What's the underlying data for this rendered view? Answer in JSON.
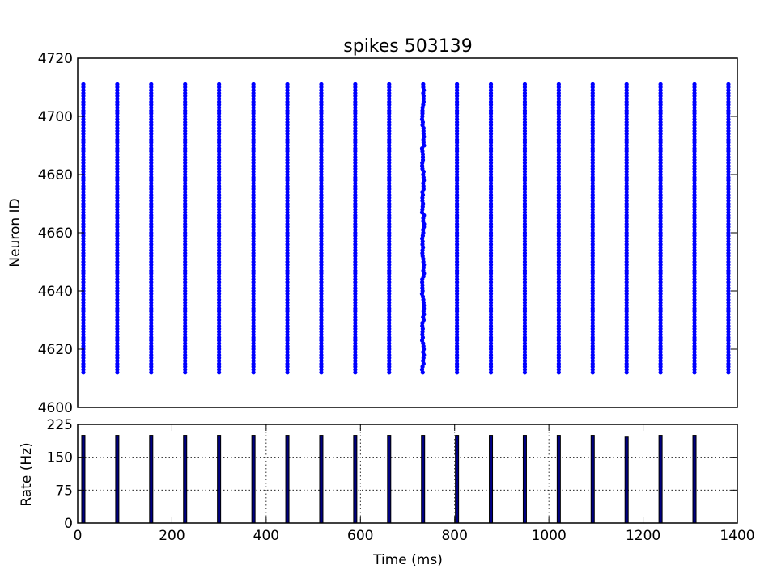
{
  "chart_data": [
    {
      "type": "scatter",
      "title": "spikes 503139",
      "xlabel": "",
      "ylabel": "Neuron ID",
      "xlim": [
        0,
        1400
      ],
      "ylim": [
        4600,
        4720
      ],
      "yticks": [
        "4600",
        "4620",
        "4640",
        "4660",
        "4680",
        "4700",
        "4720"
      ],
      "grid": false,
      "marker_color": "#0000ff",
      "neuron_id_range": [
        4612,
        4711
      ],
      "burst_times": [
        12,
        84,
        156,
        228,
        300,
        373,
        445,
        517,
        589,
        661,
        733,
        805,
        877,
        949,
        1021,
        1093,
        1165,
        1237,
        1309,
        1381
      ],
      "jittered_burst_time": 733
    },
    {
      "type": "bar",
      "xlabel": "Time (ms)",
      "ylabel": "Rate (Hz)",
      "xlim": [
        0,
        1400
      ],
      "ylim": [
        0,
        225
      ],
      "xticks": [
        "0",
        "200",
        "400",
        "600",
        "800",
        "1000",
        "1200",
        "1400"
      ],
      "yticks": [
        "0",
        "75",
        "150",
        "225"
      ],
      "grid": true,
      "bar_color": "#000080",
      "bars": [
        {
          "t": 12,
          "rate": 200
        },
        {
          "t": 84,
          "rate": 200
        },
        {
          "t": 156,
          "rate": 200
        },
        {
          "t": 228,
          "rate": 200
        },
        {
          "t": 300,
          "rate": 200
        },
        {
          "t": 373,
          "rate": 200
        },
        {
          "t": 445,
          "rate": 200
        },
        {
          "t": 517,
          "rate": 200
        },
        {
          "t": 589,
          "rate": 200
        },
        {
          "t": 661,
          "rate": 200
        },
        {
          "t": 733,
          "rate": 200
        },
        {
          "t": 805,
          "rate": 200
        },
        {
          "t": 877,
          "rate": 200
        },
        {
          "t": 949,
          "rate": 200
        },
        {
          "t": 1021,
          "rate": 200
        },
        {
          "t": 1093,
          "rate": 200
        },
        {
          "t": 1165,
          "rate": 196
        },
        {
          "t": 1237,
          "rate": 200
        },
        {
          "t": 1309,
          "rate": 200
        },
        {
          "t": 1381,
          "rate": 0
        }
      ]
    }
  ]
}
